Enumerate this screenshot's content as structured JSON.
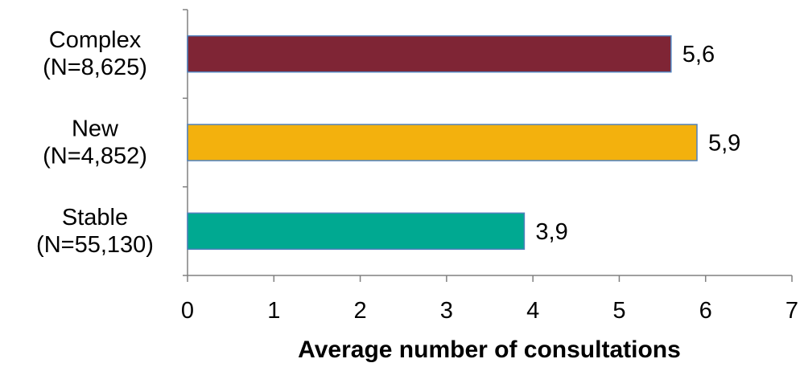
{
  "chart_data": {
    "type": "bar",
    "orientation": "horizontal",
    "categories": [
      {
        "name": "Complex",
        "n": "(N=8,625)"
      },
      {
        "name": "New",
        "n": "(N=4,852)"
      },
      {
        "name": "Stable",
        "n": "(N=55,130)"
      }
    ],
    "values": [
      5.6,
      5.9,
      3.9
    ],
    "value_labels": [
      "5,6",
      "5,9",
      "3,9"
    ],
    "colors": [
      "#7f2535",
      "#f3b10d",
      "#00a991"
    ],
    "xlabel": "Average number of consultations",
    "xlim": [
      0,
      7
    ],
    "xticks": [
      "0",
      "1",
      "2",
      "3",
      "4",
      "5",
      "6",
      "7"
    ],
    "grid": false,
    "legend": "none"
  }
}
